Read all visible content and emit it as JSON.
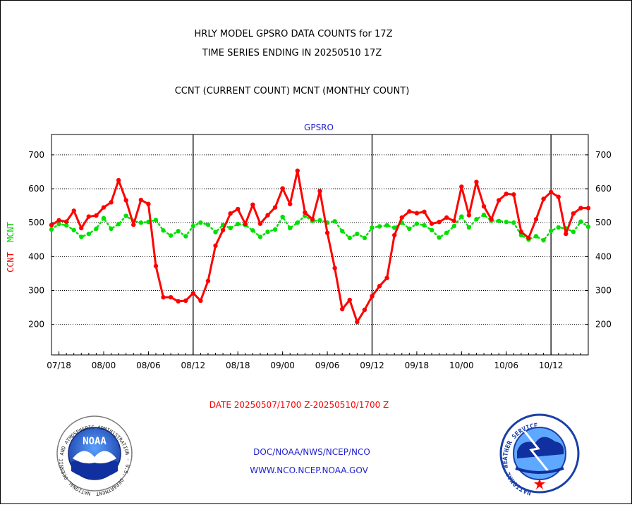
{
  "header": {
    "title_line1": "HRLY MODEL GPSRO DATA COUNTS for 17Z",
    "title_line2": "TIME SERIES ENDING IN 20250510 17Z",
    "subtitle": "CCNT (CURRENT COUNT) MCNT (MONTHLY COUNT)"
  },
  "footer": {
    "date_range": "DATE 20250507/1700 Z-20250510/1700 Z",
    "link1": "DOC/NOAA/NWS/NCEP/NCO",
    "link2": "WWW.NCO.NCEP.NOAA.GOV"
  },
  "logos": {
    "noaa_text": "NOAA",
    "noaa_ring_text": "NATIONAL OCEANIC AND ATMOSPHERIC ADMINISTRATION · U.S. DEPARTMENT OF COMMERCE",
    "nws_ring_text": "NATIONAL WEATHER SERVICE"
  },
  "colors": {
    "ccnt": "#ff0000",
    "mcnt": "#00e000",
    "title_blue": "#1f1fd0"
  },
  "chart_data": {
    "type": "line",
    "title": "GPSRO",
    "ylabel_parts": [
      "CCNT",
      "MCNT"
    ],
    "ylim": [
      110,
      760
    ],
    "yticks": [
      200,
      300,
      400,
      500,
      600,
      700
    ],
    "grid": true,
    "x_tick_labels": [
      "07/18",
      "08/00",
      "08/06",
      "08/12",
      "08/18",
      "09/00",
      "09/06",
      "09/12",
      "09/18",
      "10/00",
      "10/06",
      "10/12"
    ],
    "x_tick_index": [
      1,
      7,
      13,
      19,
      25,
      31,
      37,
      43,
      49,
      55,
      61,
      67
    ],
    "day_boundaries_index": [
      19,
      43,
      67
    ],
    "series": [
      {
        "name": "CCNT",
        "color": "#ff0000",
        "values": [
          493,
          507,
          503,
          535,
          484,
          518,
          521,
          545,
          560,
          625,
          566,
          494,
          567,
          555,
          372,
          280,
          280,
          268,
          270,
          292,
          270,
          328,
          432,
          478,
          527,
          540,
          496,
          553,
          497,
          522,
          545,
          601,
          555,
          653,
          530,
          510,
          593,
          470,
          366,
          245,
          272,
          207,
          243,
          283,
          313,
          337,
          463,
          515,
          533,
          528,
          532,
          497,
          502,
          515,
          505,
          606,
          522,
          620,
          548,
          510,
          566,
          585,
          583,
          473,
          455,
          510,
          570,
          590,
          576,
          467,
          527,
          543,
          543
        ]
      },
      {
        "name": "MCNT",
        "color": "#00e000",
        "values": [
          480,
          496,
          492,
          478,
          458,
          467,
          482,
          513,
          482,
          496,
          520,
          505,
          500,
          502,
          508,
          477,
          462,
          475,
          460,
          490,
          500,
          494,
          472,
          493,
          484,
          496,
          493,
          477,
          458,
          473,
          480,
          517,
          484,
          500,
          520,
          505,
          507,
          500,
          504,
          475,
          455,
          467,
          455,
          485,
          489,
          492,
          485,
          500,
          482,
          497,
          492,
          478,
          456,
          470,
          490,
          518,
          486,
          510,
          523,
          506,
          505,
          502,
          500,
          463,
          450,
          460,
          448,
          476,
          486,
          483,
          473,
          503,
          488
        ]
      }
    ]
  }
}
